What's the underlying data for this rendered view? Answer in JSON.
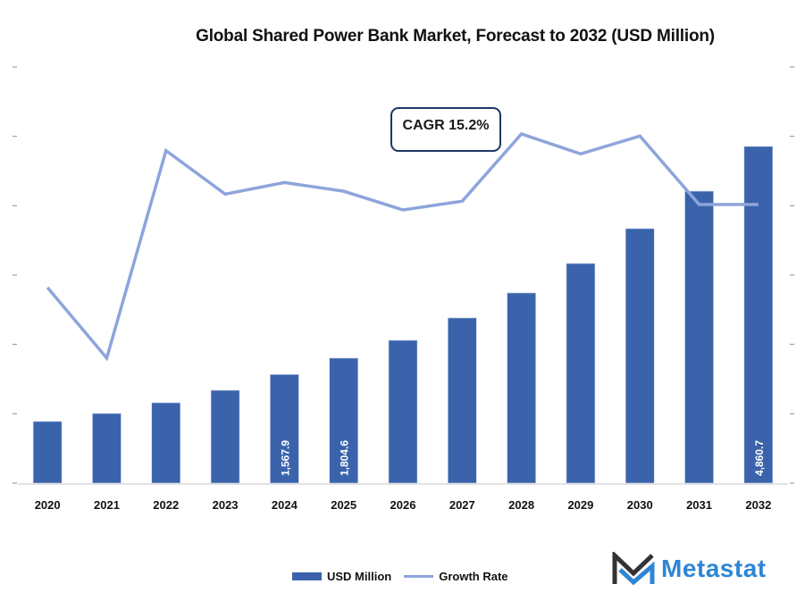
{
  "chart_data": {
    "type": "bar",
    "title": "Global Shared Power Bank Market, Forecast to 2032 (USD Million)",
    "xlabel": "",
    "ylabel": "",
    "categories": [
      "2020",
      "2021",
      "2022",
      "2023",
      "2024",
      "2025",
      "2026",
      "2027",
      "2028",
      "2029",
      "2030",
      "2031",
      "2032"
    ],
    "series": [
      {
        "name": "USD Million",
        "type": "bar",
        "color": "#3a63ac",
        "values": [
          890,
          1005,
          1160,
          1340,
          1567.9,
          1804.6,
          2062,
          2385,
          2746,
          3171,
          3674,
          4215,
          4860.7
        ],
        "data_labels": {
          "2024": "1,567.9",
          "2025": "1,804.6",
          "2032": "4,860.7"
        }
      },
      {
        "name": "Growth Rate",
        "type": "line",
        "color": "#8ea4dc",
        "axis": "secondary",
        "values": [
          13.2,
          11.5,
          16.5,
          15.45,
          15.73,
          15.52,
          15.07,
          15.28,
          16.9,
          16.42,
          16.85,
          15.2,
          15.2
        ]
      }
    ],
    "ylim": [
      0,
      6000
    ],
    "y2lim": [
      10,
      18.5
    ],
    "yticks_labels_visible": false,
    "grid": false,
    "legend": {
      "position": "bottom",
      "entries": [
        "USD Million",
        "Growth Rate"
      ]
    },
    "annotations": [
      {
        "text": "CAGR 15.2%"
      }
    ]
  },
  "annotation": {
    "cagr": "CAGR 15.2%"
  },
  "legend": {
    "bar_label": "USD Million",
    "line_label": "Growth Rate"
  },
  "brand": {
    "name": "Metastat",
    "color": "#2e86d4"
  }
}
